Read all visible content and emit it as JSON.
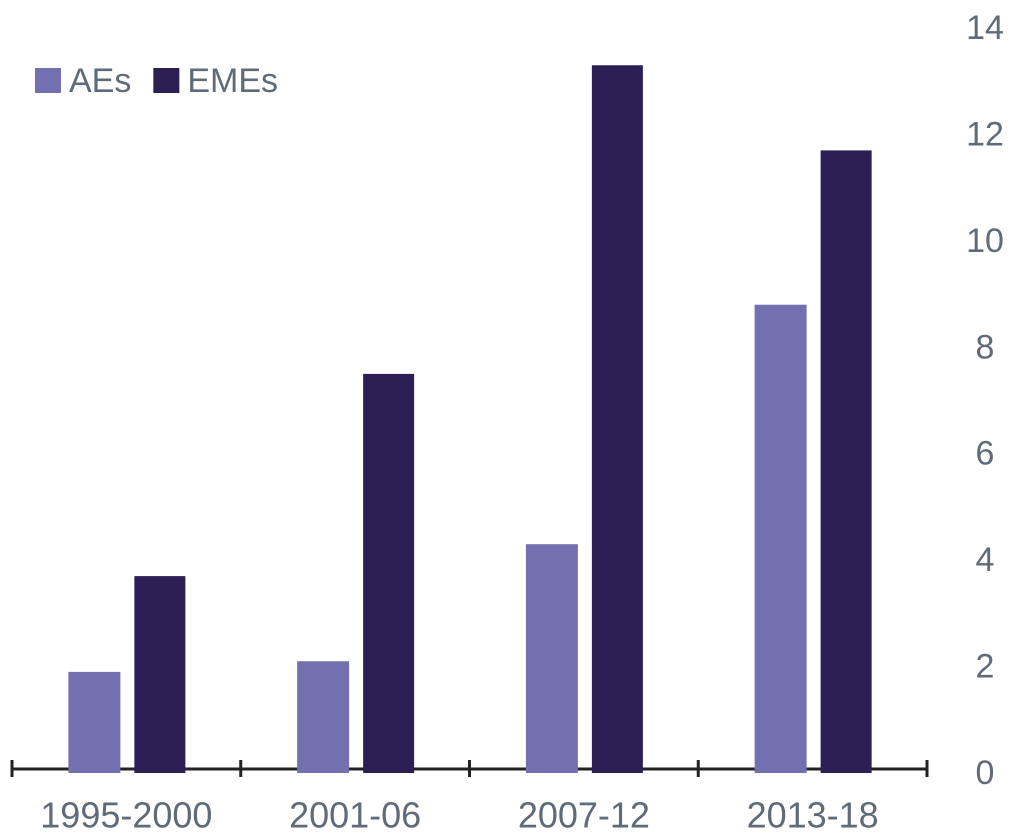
{
  "chart_data": {
    "type": "bar",
    "categories": [
      "1995-2000",
      "2001-06",
      "2007-12",
      "2013-18"
    ],
    "series": [
      {
        "name": "AEs",
        "color": "#7370b0",
        "values": [
          1.9,
          2.1,
          4.3,
          8.8
        ]
      },
      {
        "name": "EMEs",
        "color": "#2b1f55",
        "values": [
          3.7,
          7.5,
          13.3,
          11.7
        ]
      }
    ],
    "ylim": [
      0,
      14
    ],
    "yticks": [
      0,
      2,
      4,
      6,
      8,
      10,
      12,
      14
    ],
    "grid": false,
    "legend": "top-left"
  }
}
